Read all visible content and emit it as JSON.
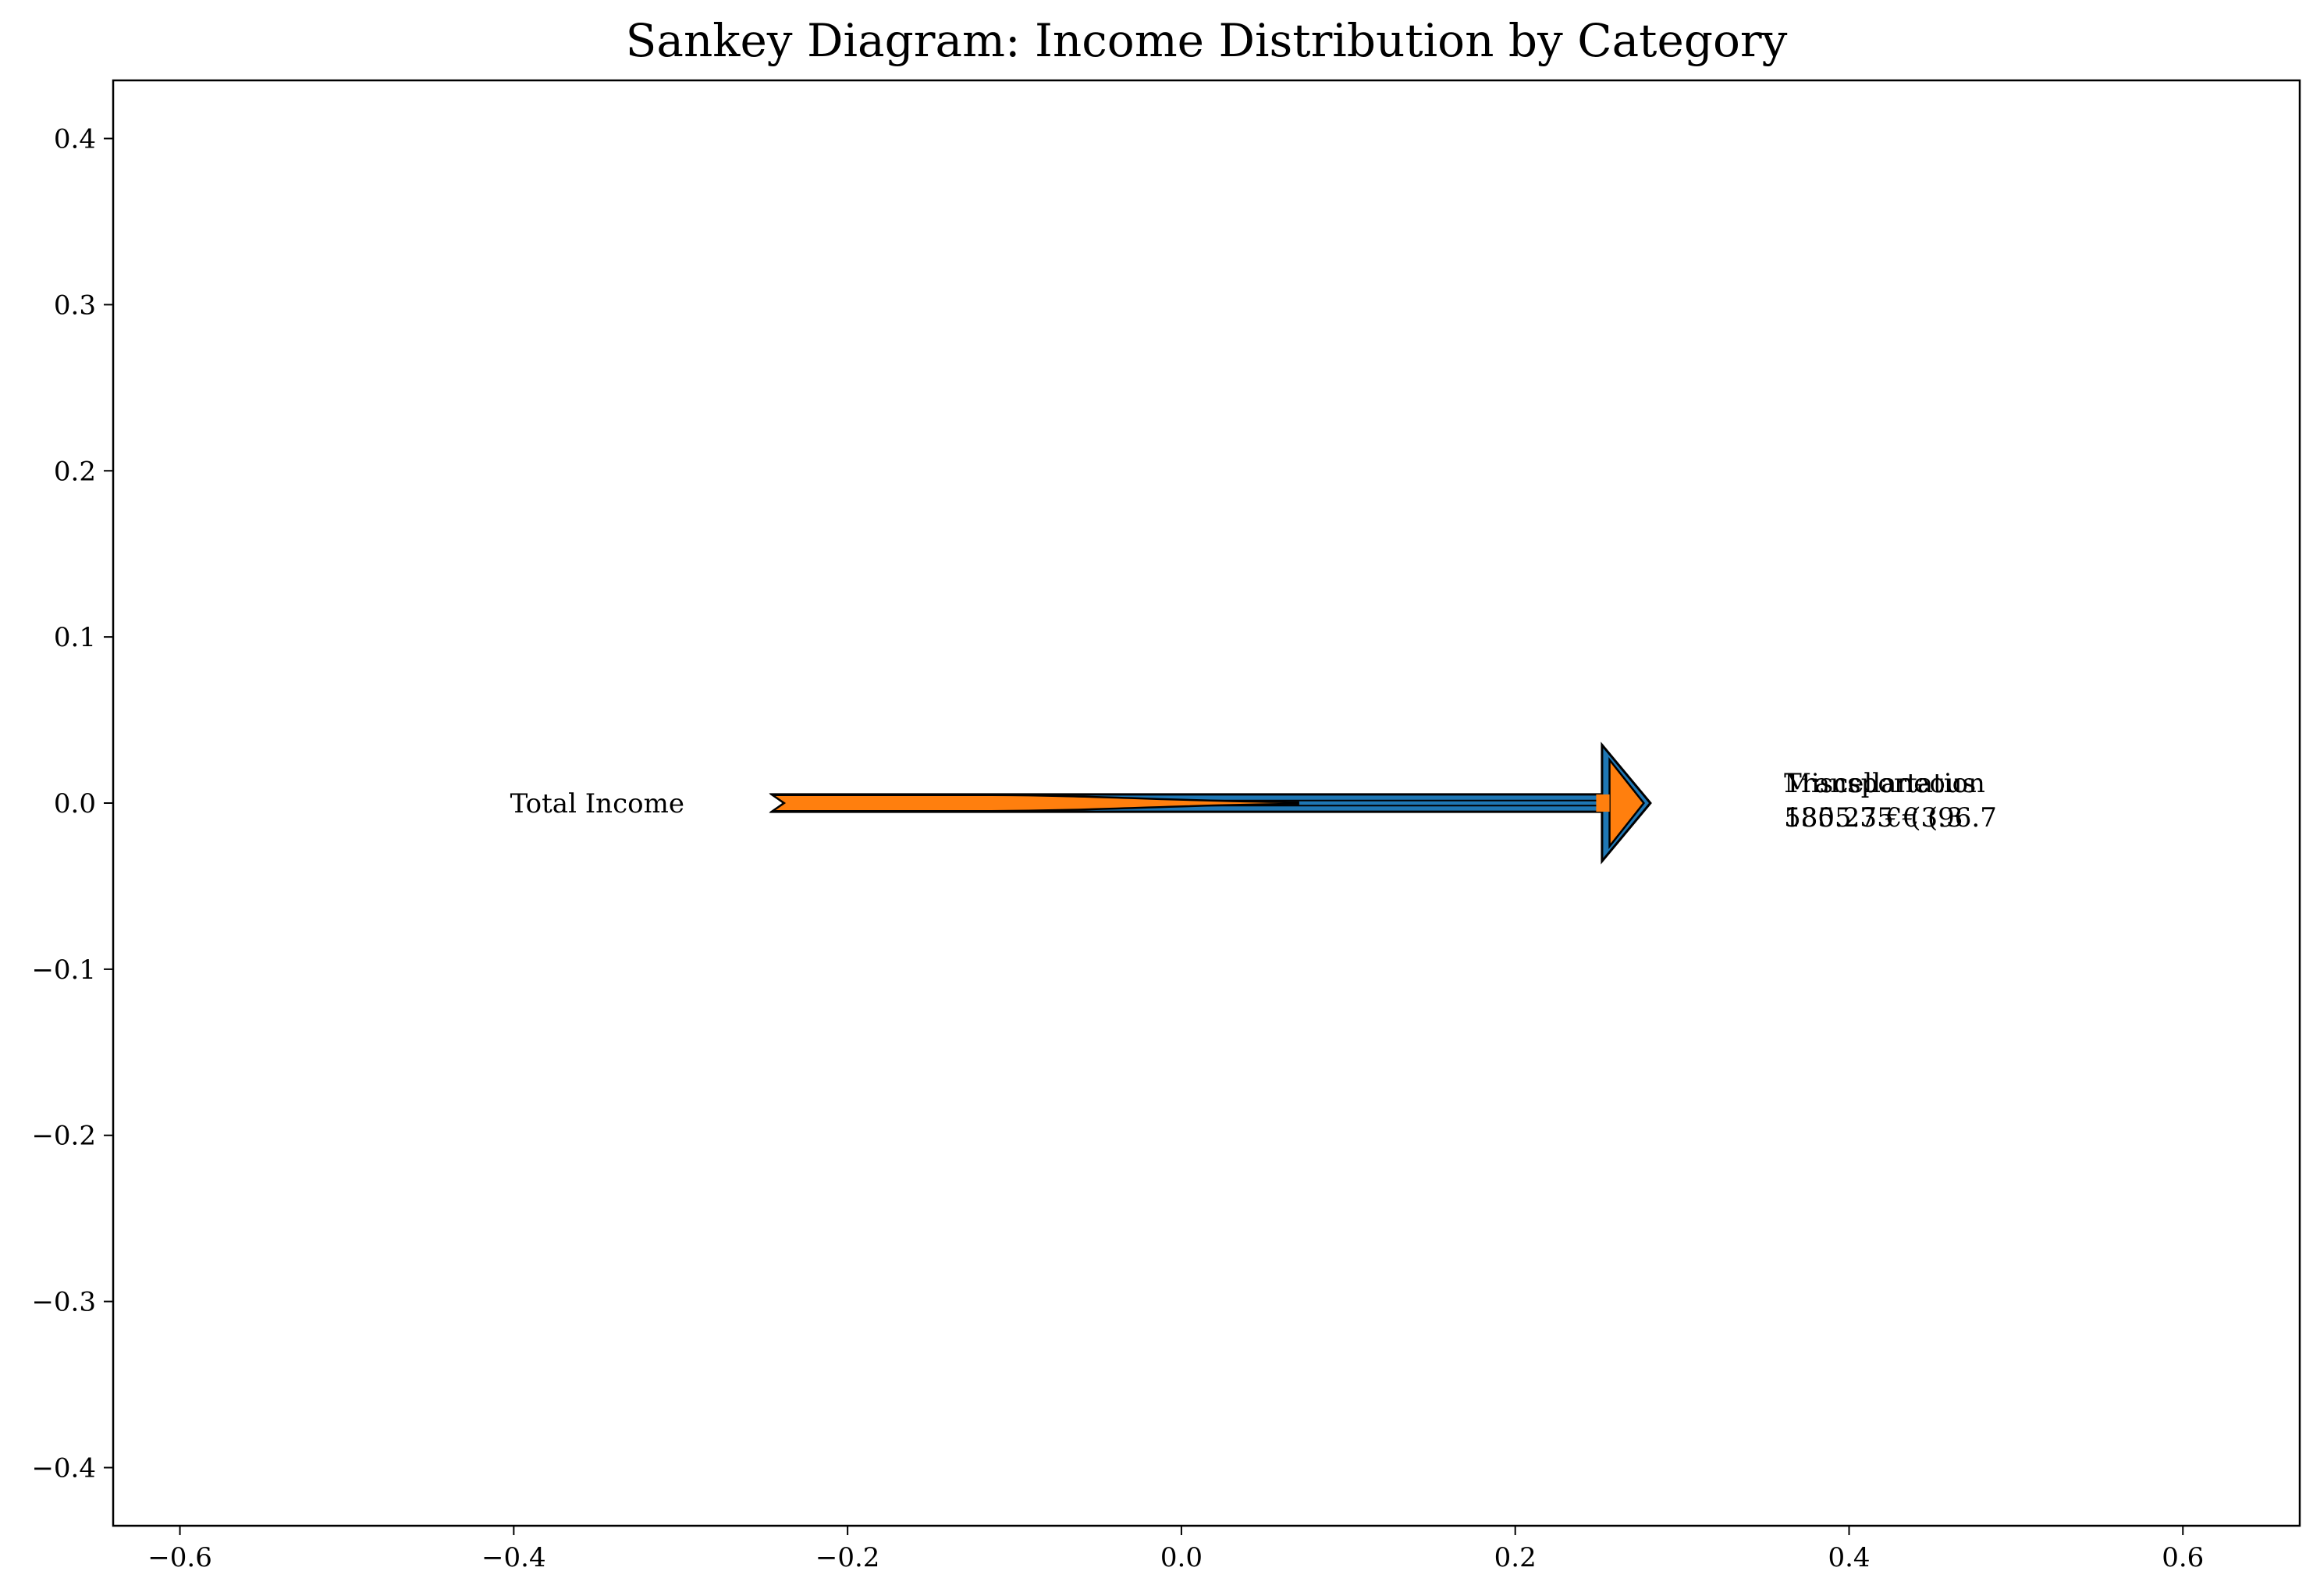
{
  "chart_data": {
    "type": "sankey",
    "title": "Sankey Diagram: Income Distribution by Category",
    "xlim": [
      -0.64,
      0.67
    ],
    "ylim": [
      -0.435,
      0.435
    ],
    "x_ticks": [
      -0.6,
      -0.4,
      -0.2,
      0.0,
      0.2,
      0.4,
      0.6
    ],
    "x_tick_labels": [
      "−0.6",
      "−0.4",
      "−0.2",
      "0.0",
      "0.2",
      "0.4",
      "0.6"
    ],
    "y_ticks": [
      0.4,
      0.3,
      0.2,
      0.1,
      0.0,
      -0.1,
      -0.2,
      -0.3,
      -0.4
    ],
    "y_tick_labels": [
      "0.4",
      "0.3",
      "0.2",
      "0.1",
      "0.0",
      "−0.1",
      "−0.2",
      "−0.3",
      "−0.4"
    ],
    "grid": false,
    "source_label": "Total Income",
    "flows": [
      {
        "color": "#1f77b4",
        "label_line1": "Transportation",
        "label_line2": "5305.75 € (96.7"
      },
      {
        "color": "#ff7f0e",
        "label_line1": "Miscellaneous",
        "label_line2": "185.23 € (3.3"
      }
    ]
  }
}
